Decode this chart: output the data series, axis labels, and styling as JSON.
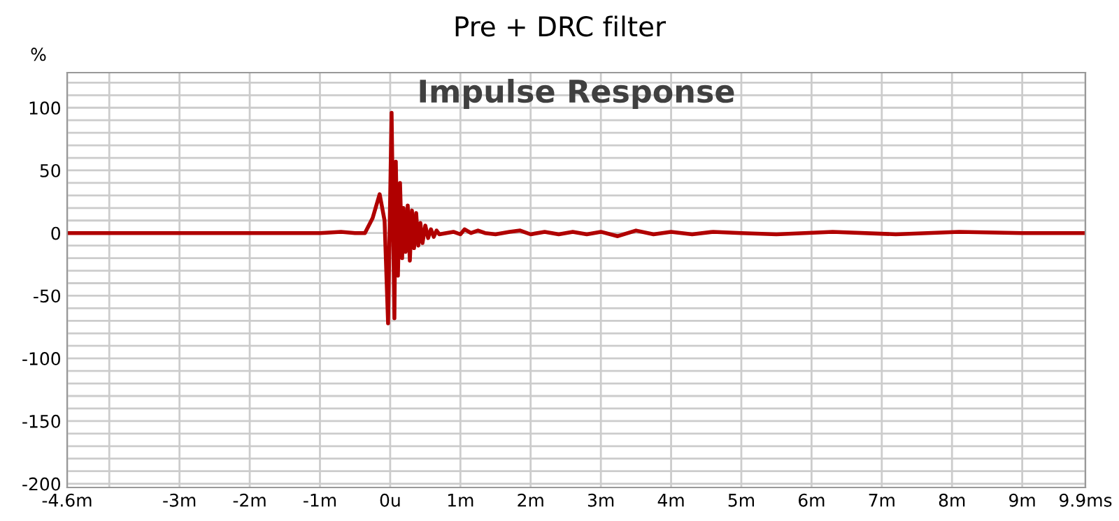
{
  "chart_data": {
    "type": "line",
    "title": "Pre + DRC filter",
    "subtitle": "Impulse Response",
    "ylabel": "%",
    "series": [
      {
        "color": "#b00000",
        "x": [
          -4.6,
          -4.0,
          -3.5,
          -3.0,
          -2.5,
          -2.0,
          -1.5,
          -1.0,
          -0.7,
          -0.5,
          -0.36,
          -0.25,
          -0.15,
          -0.08,
          -0.03,
          0.02,
          0.06,
          0.08,
          0.11,
          0.14,
          0.17,
          0.19,
          0.22,
          0.25,
          0.28,
          0.31,
          0.34,
          0.37,
          0.4,
          0.43,
          0.46,
          0.5,
          0.54,
          0.58,
          0.62,
          0.66,
          0.7,
          0.8,
          0.9,
          1.0,
          1.06,
          1.15,
          1.25,
          1.35,
          1.5,
          1.7,
          1.85,
          2.0,
          2.2,
          2.4,
          2.6,
          2.8,
          3.0,
          3.24,
          3.5,
          3.75,
          4.0,
          4.3,
          4.6,
          5.0,
          5.5,
          6.3,
          7.2,
          8.1,
          9.0,
          9.9
        ],
        "values": [
          0,
          0,
          0,
          0,
          0,
          0,
          0,
          0,
          1,
          0,
          0,
          12,
          31,
          10,
          -72,
          96,
          -68,
          57,
          -34,
          40,
          -20,
          20,
          -15,
          22,
          -22,
          18,
          -12,
          16,
          -10,
          8,
          -8,
          6,
          -4,
          3,
          -3,
          2,
          -1,
          0,
          1,
          -1,
          3,
          0,
          2,
          0,
          -1,
          1,
          2,
          -1,
          1,
          -1,
          1,
          -1,
          1,
          -2.5,
          2,
          -1,
          1,
          -1,
          1,
          0,
          -1,
          1,
          -1,
          1,
          0,
          0
        ]
      }
    ],
    "xlim": [
      -4.6,
      9.9
    ],
    "ylim": [
      -203,
      128
    ],
    "xticks": [
      {
        "value": -4.6,
        "label": "-4.6m"
      },
      {
        "value": -4,
        "label": null
      },
      {
        "value": -3,
        "label": "-3m"
      },
      {
        "value": -2,
        "label": "-2m"
      },
      {
        "value": -1,
        "label": "-1m"
      },
      {
        "value": 0,
        "label": "0u"
      },
      {
        "value": 1,
        "label": "1m"
      },
      {
        "value": 2,
        "label": "2m"
      },
      {
        "value": 3,
        "label": "3m"
      },
      {
        "value": 4,
        "label": "4m"
      },
      {
        "value": 5,
        "label": "5m"
      },
      {
        "value": 6,
        "label": "6m"
      },
      {
        "value": 7,
        "label": "7m"
      },
      {
        "value": 8,
        "label": "8m"
      },
      {
        "value": 9,
        "label": "9m"
      },
      {
        "value": 9.9,
        "label": "9.9ms"
      }
    ],
    "yticks": [
      {
        "value": 120,
        "label": null
      },
      {
        "value": 110,
        "label": null
      },
      100,
      {
        "value": 90,
        "label": null
      },
      {
        "value": 80,
        "label": null
      },
      {
        "value": 70,
        "label": null
      },
      {
        "value": 60,
        "label": null
      },
      50,
      {
        "value": 40,
        "label": null
      },
      {
        "value": 30,
        "label": null
      },
      {
        "value": 20,
        "label": null
      },
      {
        "value": 10,
        "label": null
      },
      0,
      {
        "value": -10,
        "label": null
      },
      {
        "value": -20,
        "label": null
      },
      {
        "value": -30,
        "label": null
      },
      {
        "value": -40,
        "label": null
      },
      -50,
      {
        "value": -60,
        "label": null
      },
      {
        "value": -70,
        "label": null
      },
      {
        "value": -80,
        "label": null
      },
      {
        "value": -90,
        "label": null
      },
      -100,
      {
        "value": -110,
        "label": null
      },
      {
        "value": -120,
        "label": null
      },
      {
        "value": -130,
        "label": null
      },
      {
        "value": -140,
        "label": null
      },
      -150,
      {
        "value": -160,
        "label": null
      },
      {
        "value": -170,
        "label": null
      },
      {
        "value": -180,
        "label": null
      },
      {
        "value": -190,
        "label": null
      },
      -200
    ],
    "grid": true,
    "line_style": "solid",
    "marker": "none"
  }
}
